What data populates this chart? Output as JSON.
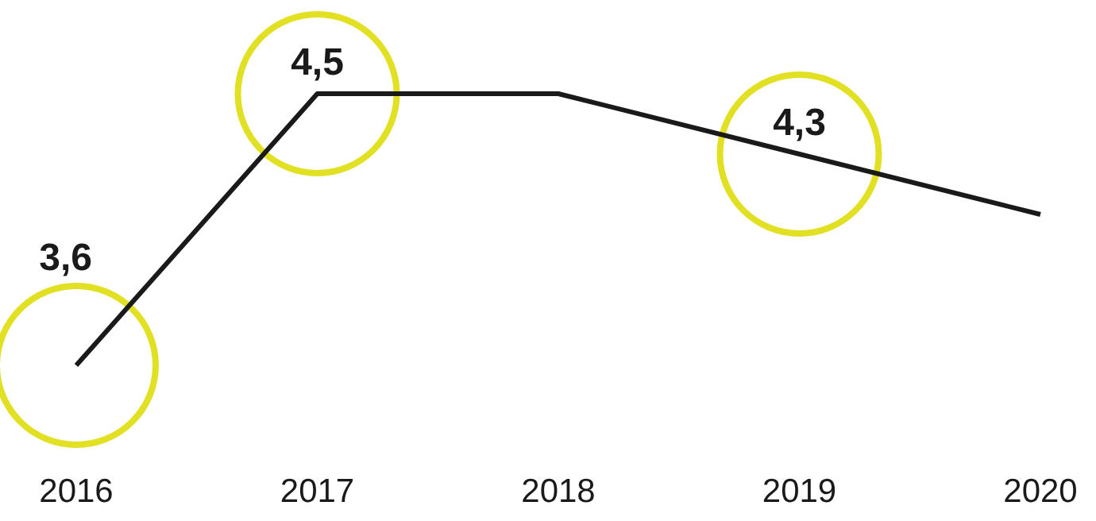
{
  "chart_data": {
    "type": "line",
    "categories": [
      "2016",
      "2017",
      "2018",
      "2019",
      "2020"
    ],
    "series": [
      {
        "color": "#1a1a1a",
        "values": [
          3.6,
          4.5,
          4.5,
          4.3,
          4.1
        ],
        "value_labels": [
          "3,6",
          "4,5",
          null,
          "4,3",
          null
        ]
      }
    ],
    "grid": false,
    "marker": "none"
  }
}
